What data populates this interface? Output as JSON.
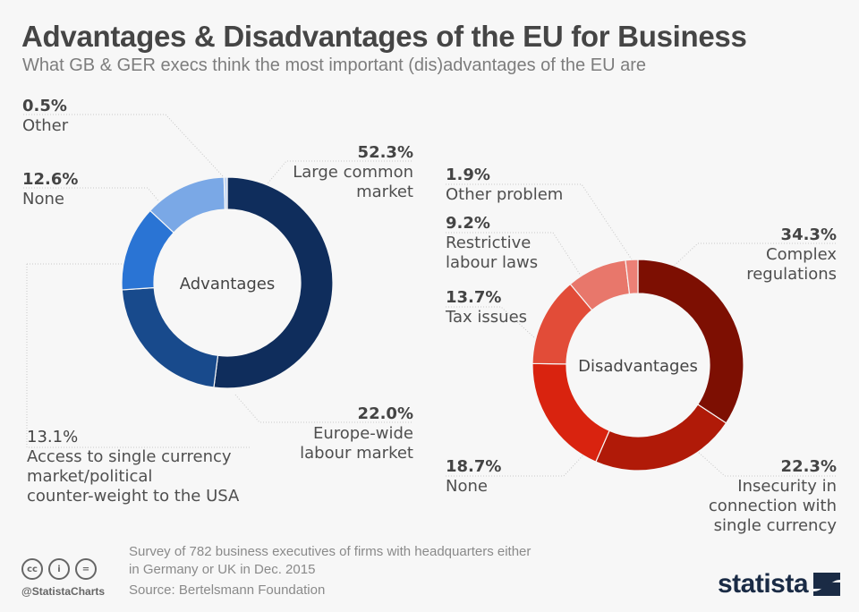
{
  "header": {
    "title": "Advantages & Disadvantages of the EU for Business",
    "subtitle": "What GB & GER execs think the most important (dis)advantages of the EU are"
  },
  "chart_data": [
    {
      "type": "pie",
      "donut": true,
      "title": "Advantages",
      "unit": "%",
      "categories": [
        "Large common market",
        "Europe-wide labour market",
        "Access to single currency market/political counter-weight to the USA",
        "None",
        "Other"
      ],
      "values": [
        52.3,
        22.0,
        13.1,
        12.6,
        0.5
      ],
      "value_labels": [
        "52.3%",
        "22.0%",
        "13.1%",
        "12.6%",
        "0.5%"
      ],
      "colors": [
        "#0f2d5c",
        "#184a8c",
        "#2a74d4",
        "#7aa8e6",
        "#c2d6f3"
      ],
      "label_lines": [
        [
          "Large common",
          "market"
        ],
        [
          "Europe-wide",
          "labour market"
        ],
        [
          "Access to single currency",
          "market/political",
          "counter-weight to the USA"
        ],
        [
          "None"
        ],
        [
          "Other"
        ]
      ]
    },
    {
      "type": "pie",
      "donut": true,
      "title": "Disadvantages",
      "unit": "%",
      "categories": [
        "Complex regulations",
        "Insecurity in connection with single currency",
        "None",
        "Tax issues",
        "Restrictive labour laws",
        "Other problem"
      ],
      "values": [
        34.3,
        22.3,
        18.7,
        13.7,
        9.2,
        1.9
      ],
      "value_labels": [
        "34.3%",
        "22.3%",
        "18.7%",
        "13.7%",
        "9.2%",
        "1.9%"
      ],
      "colors": [
        "#7d0f02",
        "#b01a08",
        "#d9230f",
        "#e24c38",
        "#e8776b",
        "#ec8076"
      ],
      "label_lines": [
        [
          "Complex",
          "regulations"
        ],
        [
          "Insecurity in",
          "connection with",
          "single currency"
        ],
        [
          "None"
        ],
        [
          "Tax issues"
        ],
        [
          "Restrictive",
          "labour laws"
        ],
        [
          "Other problem"
        ]
      ]
    }
  ],
  "footer": {
    "note_line1": "Survey of 782 business executives of firms with headquarters either",
    "note_line2": "in Germany or UK in Dec. 2015",
    "source": "Source: Bertelsmann Foundation",
    "handle": "@StatistaCharts",
    "cc_icons": [
      "cc-icon",
      "by-icon",
      "nd-icon"
    ],
    "cc_glyphs": [
      "cc",
      "i",
      "="
    ],
    "brand": "statista"
  }
}
